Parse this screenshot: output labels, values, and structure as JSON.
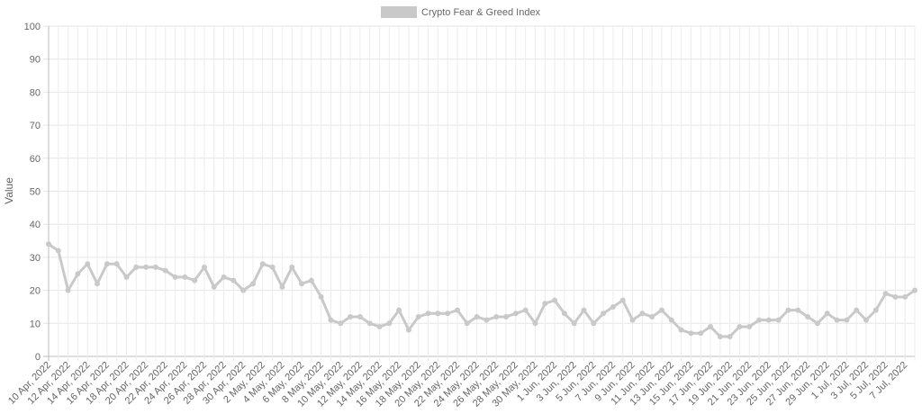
{
  "chart_data": {
    "type": "line",
    "title": "",
    "ylabel": "Value",
    "xlabel": "",
    "ylim": [
      0,
      100
    ],
    "y_ticks": [
      0,
      10,
      20,
      30,
      40,
      50,
      60,
      70,
      80,
      90,
      100
    ],
    "grid": true,
    "legend_position": "top-center",
    "series": [
      {
        "name": "Crypto Fear & Greed Index",
        "color": "#c9c9c9",
        "values": [
          34,
          32,
          20,
          25,
          28,
          22,
          28,
          28,
          24,
          27,
          27,
          27,
          26,
          24,
          24,
          23,
          27,
          21,
          24,
          23,
          20,
          22,
          28,
          27,
          21,
          27,
          22,
          23,
          18,
          11,
          10,
          12,
          12,
          10,
          9,
          10,
          14,
          8,
          12,
          13,
          13,
          13,
          14,
          10,
          12,
          11,
          12,
          12,
          13,
          14,
          10,
          16,
          17,
          13,
          10,
          14,
          10,
          13,
          15,
          17,
          11,
          13,
          12,
          14,
          11,
          8,
          7,
          7,
          9,
          6,
          6,
          9,
          9,
          11,
          11,
          11,
          14,
          14,
          12,
          10,
          13,
          11,
          11,
          14,
          11,
          14,
          19,
          18,
          18,
          20
        ]
      }
    ],
    "x_tick_labels": [
      "10 Apr, 2022",
      "12 Apr, 2022",
      "14 Apr, 2022",
      "16 Apr, 2022",
      "18 Apr, 2022",
      "20 Apr, 2022",
      "22 Apr, 2022",
      "24 Apr, 2022",
      "26 Apr, 2022",
      "28 Apr, 2022",
      "30 Apr, 2022",
      "2 May, 2022",
      "4 May, 2022",
      "6 May, 2022",
      "8 May, 2022",
      "10 May, 2022",
      "12 May, 2022",
      "14 May, 2022",
      "16 May, 2022",
      "18 May, 2022",
      "20 May, 2022",
      "22 May, 2022",
      "24 May, 2022",
      "26 May, 2022",
      "28 May, 2022",
      "30 May, 2022",
      "1 Jun, 2022",
      "3 Jun, 2022",
      "5 Jun, 2022",
      "7 Jun, 2022",
      "9 Jun, 2022",
      "11 Jun, 2022",
      "13 Jun, 2022",
      "15 Jun, 2022",
      "17 Jun, 2022",
      "19 Jun, 2022",
      "21 Jun, 2022",
      "23 Jun, 2022",
      "25 Jun, 2022",
      "27 Jun, 2022",
      "29 Jun, 2022",
      "1 Jul, 2022",
      "3 Jul, 2022",
      "5 Jul, 2022",
      "7 Jul, 2022"
    ]
  }
}
